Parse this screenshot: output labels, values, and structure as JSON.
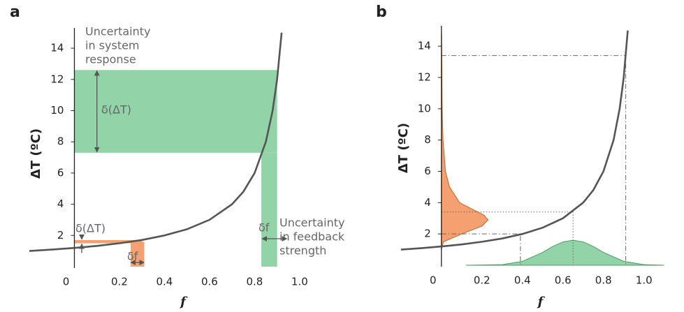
{
  "chart_data": [
    {
      "type": "line",
      "panel": "a",
      "x_label": "f",
      "y_label": "ΔT (ºC)",
      "xlim": [
        -0.2,
        1.14
      ],
      "ylim": [
        0,
        15.3
      ],
      "xticks": [
        0,
        0.2,
        0.4,
        0.6,
        0.8,
        {
          "value": 1,
          "label": "1.0"
        }
      ],
      "yticks": [
        2,
        4,
        6,
        8,
        10,
        12,
        14
      ],
      "curve": {
        "color": "#555555",
        "x": [
          -0.2,
          -0.1,
          0,
          0.1,
          0.2,
          0.3,
          0.4,
          0.5,
          0.6,
          0.7,
          0.75,
          0.8,
          0.85,
          0.88,
          0.9,
          0.92
        ],
        "values": [
          1.0,
          1.09,
          1.2,
          1.33,
          1.5,
          1.71,
          2.0,
          2.4,
          3.0,
          4.0,
          4.8,
          6.0,
          8.0,
          10.0,
          12.0,
          15.0
        ]
      },
      "regions": [
        {
          "x": [
            0,
            0.9
          ],
          "y": [
            7.3,
            12.6
          ],
          "color": "#92d3a8"
        },
        {
          "x": [
            0.83,
            0.9
          ],
          "y": [
            0,
            7.3
          ],
          "color": "#92d3a8"
        },
        {
          "x": [
            0,
            0.3
          ],
          "y": [
            1.5,
            1.7
          ],
          "color": "#f4a070"
        },
        {
          "x": [
            0.25,
            0.31
          ],
          "y": [
            0,
            1.6
          ],
          "color": "#f4a070"
        }
      ],
      "annotations": [
        {
          "lines": [
            "Uncertainty",
            "in system",
            "response"
          ]
        },
        {
          "lines": [
            "δ(ΔT)"
          ]
        },
        {
          "lines": [
            "δ(ΔT)"
          ]
        },
        {
          "lines": [
            "δf"
          ]
        },
        {
          "lines": [
            "δf"
          ]
        },
        {
          "lines": [
            "Uncertainty",
            "in feedback",
            "strength"
          ]
        }
      ]
    },
    {
      "type": "line",
      "panel": "b",
      "x_label": "f",
      "y_label": "ΔT (ºC)",
      "xlim": [
        -0.22,
        1.17
      ],
      "ylim": [
        0,
        15.3
      ],
      "xticks": [
        0,
        0.2,
        0.4,
        0.6,
        0.8,
        {
          "value": 1,
          "label": "1.0"
        }
      ],
      "yticks": [
        2,
        4,
        6,
        8,
        10,
        12,
        14
      ],
      "curve": {
        "color": "#555555",
        "x": [
          -0.2,
          -0.1,
          0,
          0.1,
          0.2,
          0.3,
          0.4,
          0.5,
          0.6,
          0.7,
          0.75,
          0.8,
          0.85,
          0.88,
          0.9,
          0.92
        ],
        "values": [
          1.0,
          1.09,
          1.2,
          1.33,
          1.5,
          1.71,
          2.0,
          2.4,
          3.0,
          4.0,
          4.8,
          6.0,
          8.0,
          10.0,
          12.0,
          15.0
        ]
      },
      "f_distribution": {
        "color": "#92d3a8",
        "stroke": "#4f9a66",
        "x": [
          0.12,
          0.3,
          0.4,
          0.5,
          0.55,
          0.6,
          0.65,
          0.7,
          0.75,
          0.8,
          0.9,
          1.0,
          1.1
        ],
        "values": [
          0.0,
          0.04,
          0.25,
          0.82,
          1.2,
          1.49,
          1.6,
          1.49,
          1.2,
          0.82,
          0.25,
          0.04,
          0.0
        ]
      },
      "dT_distribution": {
        "color": "#f4a070",
        "stroke": "#c8602a",
        "y": [
          1.0,
          1.5,
          2.0,
          2.5,
          2.9,
          3.2,
          3.6,
          4.0,
          5.0,
          6.0,
          8.0,
          10.0,
          14.8
        ],
        "values": [
          0.0,
          0.01,
          0.1,
          0.2,
          0.23,
          0.21,
          0.15,
          0.09,
          0.04,
          0.02,
          0.008,
          0.004,
          0.001
        ]
      },
      "guides": [
        {
          "f": 0.65,
          "T": 3.4,
          "style": "dotted"
        },
        {
          "f": 0.39,
          "T": 2.0,
          "style": "dashdot"
        },
        {
          "f": 0.91,
          "T": 13.4,
          "style": "dashdot"
        }
      ]
    }
  ]
}
